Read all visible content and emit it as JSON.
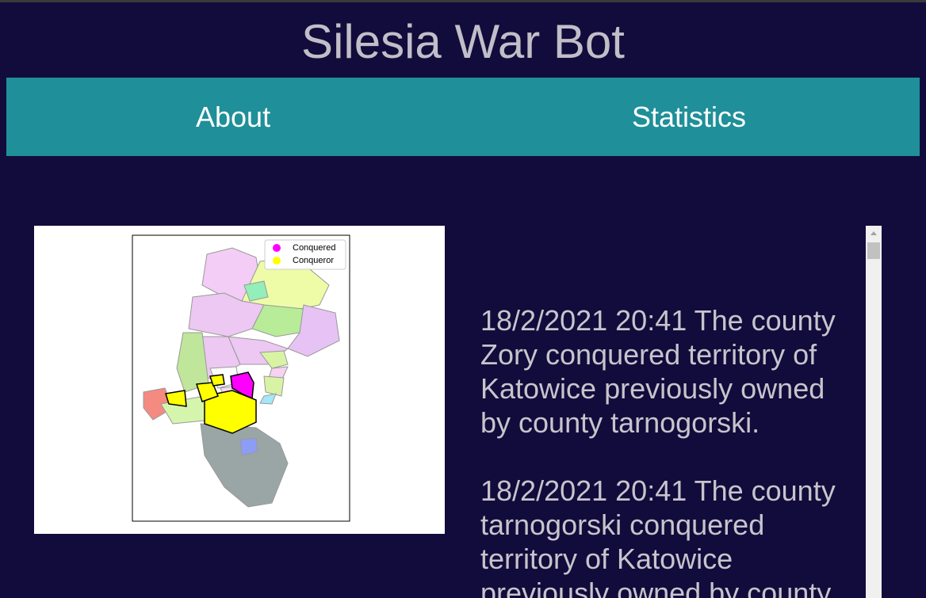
{
  "header": {
    "title": "Silesia War Bot"
  },
  "nav": {
    "items": [
      "About",
      "Statistics"
    ]
  },
  "map": {
    "legend": [
      {
        "label": "Conquered",
        "color": "#ff00ff"
      },
      {
        "label": "Conqueror",
        "color": "#ffff00"
      }
    ]
  },
  "log": {
    "entries": [
      "18/2/2021 20:41 The county Zory conquered territory of Katowice previously owned by county tarnogorski.",
      "18/2/2021 20:41 The county tarnogorski conquered territory of Katowice previously owned by county"
    ]
  }
}
